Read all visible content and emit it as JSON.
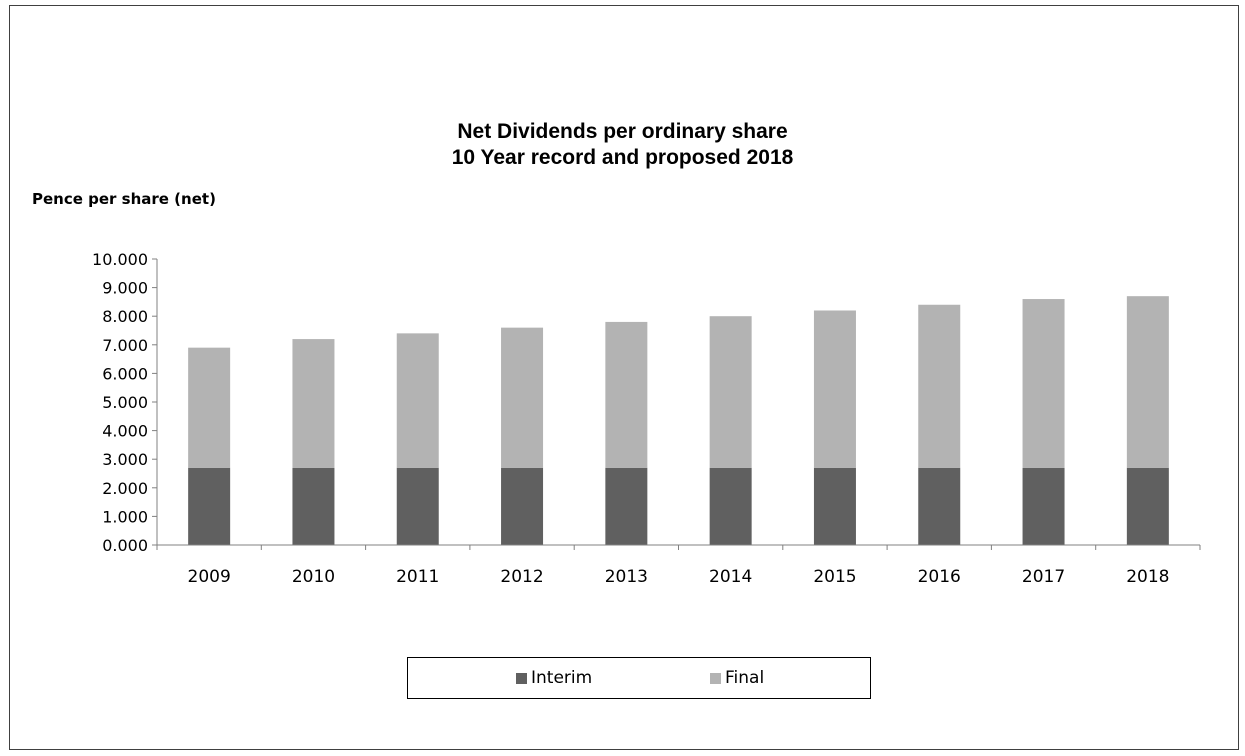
{
  "chart_data": {
    "type": "bar",
    "stacked": true,
    "title": "Net Dividends per ordinary share",
    "subtitle": "10 Year record and proposed 2018",
    "ylabel": "Pence per share (net)",
    "xlabel": "",
    "categories": [
      "2009",
      "2010",
      "2011",
      "2012",
      "2013",
      "2014",
      "2015",
      "2016",
      "2017",
      "2018"
    ],
    "series": [
      {
        "name": "Interim",
        "color": "#606060",
        "values": [
          2.7,
          2.7,
          2.7,
          2.7,
          2.7,
          2.7,
          2.7,
          2.7,
          2.7,
          2.7
        ]
      },
      {
        "name": "Final",
        "color": "#b3b3b3",
        "values": [
          4.2,
          4.5,
          4.7,
          4.9,
          5.1,
          5.3,
          5.5,
          5.7,
          5.9,
          6.0
        ]
      }
    ],
    "ylim": [
      0,
      10
    ],
    "yticks": [
      "0.000",
      "1.000",
      "2.000",
      "3.000",
      "4.000",
      "5.000",
      "6.000",
      "7.000",
      "8.000",
      "9.000",
      "10.000"
    ],
    "grid": false,
    "legend_position": "bottom"
  }
}
